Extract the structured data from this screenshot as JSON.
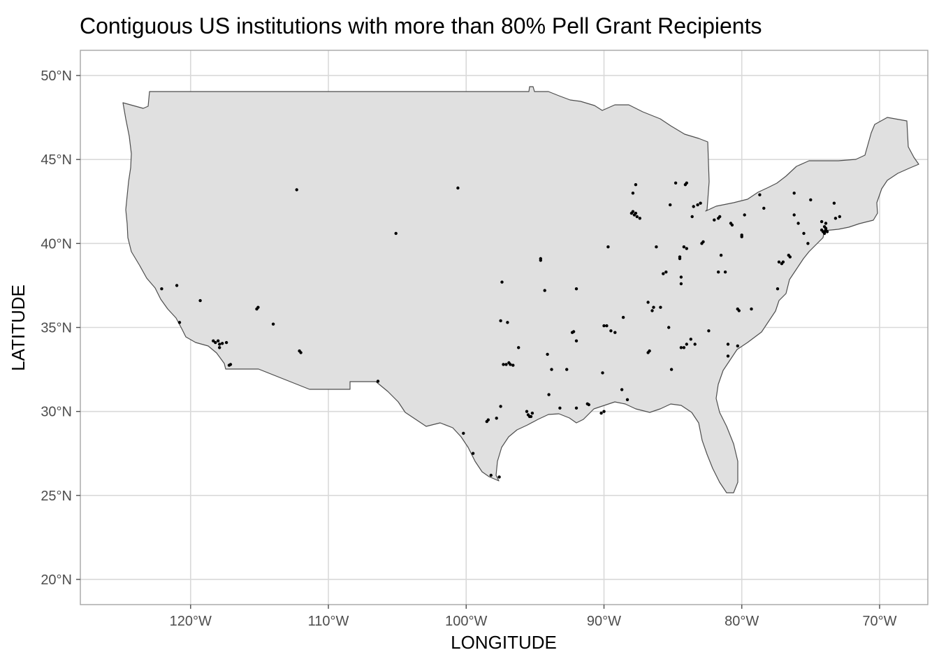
{
  "chart_data": {
    "type": "scatter",
    "title": "Contiguous US institutions with more than 80% Pell Grant Recipients",
    "xlabel": "LONGITUDE",
    "ylabel": "LATITUDE",
    "xlim": [
      -128,
      -66.5
    ],
    "ylim": [
      18.5,
      51.5
    ],
    "x_ticks": [
      -120,
      -110,
      -100,
      -90,
      -80,
      -70
    ],
    "x_tick_labels": [
      "120°W",
      "110°W",
      "100°W",
      "90°W",
      "80°W",
      "70°W"
    ],
    "y_ticks": [
      20,
      25,
      30,
      35,
      40,
      45,
      50
    ],
    "y_tick_labels": [
      "20°N",
      "25°N",
      "30°N",
      "35°N",
      "40°N",
      "45°N",
      "50°N"
    ],
    "grid": true,
    "map_fill": "#e0e0e0",
    "map_stroke": "#4d4d4d",
    "point_color": "#000000",
    "series": [
      {
        "points": [
          [
            -122.1,
            37.3
          ],
          [
            -121.0,
            37.5
          ],
          [
            -119.3,
            36.6
          ],
          [
            -120.8,
            35.3
          ],
          [
            -118.2,
            34.1
          ],
          [
            -118.0,
            34.2
          ],
          [
            -117.9,
            34.0
          ],
          [
            -117.7,
            34.05
          ],
          [
            -117.4,
            34.1
          ],
          [
            -117.9,
            33.8
          ],
          [
            -117.1,
            32.8
          ],
          [
            -117.2,
            32.75
          ],
          [
            -118.35,
            34.2
          ],
          [
            -115.1,
            36.2
          ],
          [
            -115.2,
            36.1
          ],
          [
            -114.0,
            35.2
          ],
          [
            -112.0,
            33.5
          ],
          [
            -112.1,
            33.6
          ],
          [
            -112.3,
            43.2
          ],
          [
            -105.1,
            40.6
          ],
          [
            -100.6,
            43.3
          ],
          [
            -106.4,
            31.8
          ],
          [
            -99.5,
            27.5
          ],
          [
            -100.2,
            28.7
          ],
          [
            -98.2,
            26.2
          ],
          [
            -97.6,
            26.1
          ],
          [
            -98.5,
            29.4
          ],
          [
            -98.4,
            29.5
          ],
          [
            -97.8,
            29.6
          ],
          [
            -97.5,
            30.3
          ],
          [
            -96.8,
            32.8
          ],
          [
            -96.9,
            32.9
          ],
          [
            -97.1,
            32.8
          ],
          [
            -96.6,
            32.75
          ],
          [
            -96.2,
            33.8
          ],
          [
            -97.3,
            32.8
          ],
          [
            -95.4,
            29.7
          ],
          [
            -95.5,
            29.8
          ],
          [
            -95.3,
            29.7
          ],
          [
            -95.6,
            30.0
          ],
          [
            -95.2,
            29.9
          ],
          [
            -97.5,
            35.4
          ],
          [
            -97.0,
            35.3
          ],
          [
            -97.4,
            37.7
          ],
          [
            -94.6,
            39.0
          ],
          [
            -94.6,
            39.1
          ],
          [
            -94.3,
            37.2
          ],
          [
            -92.0,
            37.3
          ],
          [
            -94.1,
            33.4
          ],
          [
            -93.8,
            32.5
          ],
          [
            -93.2,
            30.2
          ],
          [
            -94.0,
            31.0
          ],
          [
            -92.3,
            34.7
          ],
          [
            -92.2,
            34.75
          ],
          [
            -92.0,
            34.2
          ],
          [
            -92.7,
            32.5
          ],
          [
            -92.0,
            30.2
          ],
          [
            -90.1,
            32.3
          ],
          [
            -90.0,
            35.1
          ],
          [
            -89.8,
            35.1
          ],
          [
            -88.7,
            31.3
          ],
          [
            -90.2,
            29.9
          ],
          [
            -90.0,
            30.0
          ],
          [
            -91.1,
            30.4
          ],
          [
            -91.2,
            30.45
          ],
          [
            -89.7,
            39.8
          ],
          [
            -88.0,
            41.8
          ],
          [
            -87.7,
            41.8
          ],
          [
            -87.8,
            41.7
          ],
          [
            -87.6,
            41.6
          ],
          [
            -87.4,
            41.5
          ],
          [
            -87.9,
            41.9
          ],
          [
            -86.2,
            39.8
          ],
          [
            -85.5,
            38.3
          ],
          [
            -85.7,
            38.2
          ],
          [
            -84.5,
            39.1
          ],
          [
            -84.5,
            39.2
          ],
          [
            -84.4,
            38.0
          ],
          [
            -84.2,
            39.8
          ],
          [
            -84.0,
            39.7
          ],
          [
            -84.4,
            37.6
          ],
          [
            -86.8,
            36.5
          ],
          [
            -86.5,
            36.0
          ],
          [
            -86.4,
            36.2
          ],
          [
            -85.9,
            36.2
          ],
          [
            -85.3,
            35.0
          ],
          [
            -84.4,
            33.8
          ],
          [
            -84.0,
            34.0
          ],
          [
            -84.2,
            33.8
          ],
          [
            -83.7,
            34.3
          ],
          [
            -83.4,
            34.0
          ],
          [
            -86.8,
            33.5
          ],
          [
            -86.7,
            33.6
          ],
          [
            -85.1,
            32.5
          ],
          [
            -88.3,
            30.7
          ],
          [
            -89.2,
            34.7
          ],
          [
            -88.6,
            35.6
          ],
          [
            -89.5,
            34.8
          ],
          [
            -87.7,
            43.5
          ],
          [
            -87.9,
            43.0
          ],
          [
            -84.8,
            43.6
          ],
          [
            -84.0,
            43.6
          ],
          [
            -84.1,
            43.5
          ],
          [
            -83.5,
            42.2
          ],
          [
            -83.2,
            42.3
          ],
          [
            -83.0,
            42.4
          ],
          [
            -85.2,
            42.3
          ],
          [
            -83.6,
            41.6
          ],
          [
            -82.0,
            41.4
          ],
          [
            -81.7,
            41.5
          ],
          [
            -81.6,
            41.6
          ],
          [
            -80.8,
            41.2
          ],
          [
            -80.7,
            41.1
          ],
          [
            -80.0,
            40.4
          ],
          [
            -80.0,
            40.5
          ],
          [
            -82.9,
            40.0
          ],
          [
            -82.8,
            40.1
          ],
          [
            -81.5,
            39.3
          ],
          [
            -81.2,
            38.3
          ],
          [
            -81.7,
            38.3
          ],
          [
            -82.4,
            34.8
          ],
          [
            -81.0,
            34.0
          ],
          [
            -81.0,
            33.3
          ],
          [
            -80.3,
            33.9
          ],
          [
            -80.3,
            36.1
          ],
          [
            -80.2,
            36.0
          ],
          [
            -79.3,
            36.1
          ],
          [
            -77.4,
            37.3
          ],
          [
            -77.0,
            38.9
          ],
          [
            -77.1,
            38.8
          ],
          [
            -76.6,
            39.3
          ],
          [
            -76.5,
            39.2
          ],
          [
            -75.2,
            40.0
          ],
          [
            -75.5,
            40.6
          ],
          [
            -77.3,
            38.9
          ],
          [
            -74.0,
            40.7
          ],
          [
            -73.9,
            40.8
          ],
          [
            -74.1,
            40.7
          ],
          [
            -74.2,
            40.8
          ],
          [
            -73.8,
            40.7
          ],
          [
            -73.9,
            40.9
          ],
          [
            -74.0,
            41.0
          ],
          [
            -74.2,
            41.3
          ],
          [
            -73.9,
            41.2
          ],
          [
            -74.0,
            40.6
          ],
          [
            -76.2,
            41.7
          ],
          [
            -75.9,
            41.2
          ],
          [
            -75.0,
            42.6
          ],
          [
            -76.2,
            43.0
          ],
          [
            -73.3,
            42.4
          ],
          [
            -72.9,
            41.6
          ],
          [
            -73.2,
            41.5
          ],
          [
            -78.7,
            42.9
          ],
          [
            -78.4,
            42.1
          ],
          [
            -79.8,
            41.7
          ]
        ]
      }
    ]
  }
}
